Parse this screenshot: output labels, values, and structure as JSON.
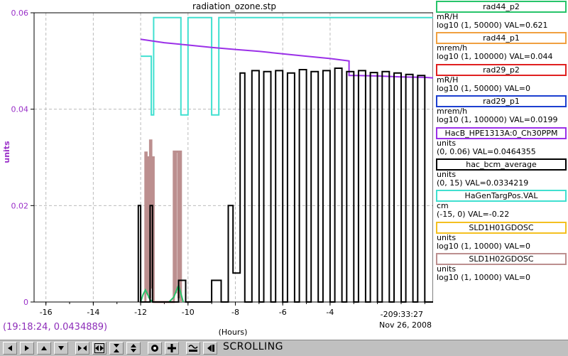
{
  "window": {
    "title": "radiation_ozone.stp",
    "x_label": "(Hours)",
    "time_label": "-209:33:27",
    "date_label": "Nov 26, 2008",
    "coord_readout": "(19:18:24, 0.0434889)",
    "status": "SCROLLING"
  },
  "colors": {
    "axis_y_label": "#9a30c8",
    "coord_text": "#8d2db9",
    "toolbar_bg": "#c0c0c0"
  },
  "legend": [
    {
      "name": "rad44_p2",
      "color": "#27c46a",
      "unit": "mR/H",
      "range": "log10 (1, 50000) VAL=0.621"
    },
    {
      "name": "rad44_p1",
      "color": "#f0a040",
      "unit": "mrem/h",
      "range": "log10 (1, 100000) VAL=0.044"
    },
    {
      "name": "rad29_p2",
      "color": "#e02020",
      "unit": "mR/H",
      "range": "log10 (1, 50000)  VAL=0"
    },
    {
      "name": "rad29_p1",
      "color": "#1c3fd0",
      "unit": "mrem/h",
      "range": "log10 (1, 100000) VAL=0.0199"
    },
    {
      "name": "HacB_HPE1313A:0_Ch30PPM",
      "color": "#9b30e8",
      "unit": "units",
      "range": "(0, 0.06) VAL=0.0464355"
    },
    {
      "name": "hac_bcm_average",
      "color": "#000000",
      "unit": "units",
      "range": "(0, 15) VAL=0.0334219"
    },
    {
      "name": "HaGenTargPos.VAL",
      "color": "#40e0d0",
      "unit": "cm",
      "range": "(-15, 0)  VAL=-0.22"
    },
    {
      "name": "SLD1H01GDOSC",
      "color": "#f4c020",
      "unit": "units",
      "range": "log10 (1, 10000)  VAL=0"
    },
    {
      "name": "SLD1H02GDOSC",
      "color": "#bc8f8f",
      "unit": "units",
      "range": "log10 (1, 10000)  VAL=0"
    }
  ],
  "toolbar": {
    "buttons": [
      "arrow-left-icon",
      "arrow-right-icon",
      "arrow-up-icon",
      "arrow-down-icon",
      "zoom-in-x-icon",
      "zoom-out-x-icon",
      "zoom-in-y-icon",
      "zoom-out-y-icon",
      "record-icon",
      "add-icon",
      "fit-icon",
      "back-icon"
    ]
  },
  "chart_data": {
    "type": "line",
    "title": "radiation_ozone.stp",
    "xlabel": "(Hours)",
    "ylabel": "units",
    "xlim": [
      -16.5,
      0.35
    ],
    "ylim": [
      0,
      0.06
    ],
    "x_ticks": [
      -16,
      -14,
      -12,
      -10,
      -8,
      -6,
      -4
    ],
    "x_tick_labels": [
      "-16",
      "-14",
      "-12",
      "-10",
      "-8",
      "-6",
      "-4"
    ],
    "y_ticks": [
      0,
      0.02,
      0.04,
      0.06
    ],
    "y_tick_labels": [
      "0",
      "0.02",
      "0.04",
      "0.06"
    ],
    "grid": true,
    "series": [
      {
        "name": "HaGenTargPos.VAL",
        "color": "#40e0d0",
        "x": [
          -12,
          -11.55,
          -11.55,
          -11.45,
          -11.45,
          -11.25,
          -11.25,
          -10.3,
          -10.3,
          -10.0,
          -10.0,
          -9.95,
          -9.95,
          -9.0,
          -9.0,
          -8.7,
          -8.7,
          -8.6,
          -8.6,
          0.35
        ],
        "y": [
          0.051,
          0.051,
          0.0388,
          0.0388,
          0.059,
          0.059,
          0.059,
          0.059,
          0.0388,
          0.0388,
          0.059,
          0.059,
          0.059,
          0.059,
          0.0388,
          0.0388,
          0.059,
          0.059,
          0.059,
          0.059
        ]
      },
      {
        "name": "HacB_HPE1313A:0_Ch30PPM",
        "color": "#9b30e8",
        "x": [
          -12.0,
          -11,
          -10,
          -9,
          -8,
          -7,
          -6,
          -5,
          -4,
          -3.2,
          -3.2,
          -3.0,
          -2,
          -1,
          0,
          0.35
        ],
        "y": [
          0.0545,
          0.0538,
          0.0533,
          0.0528,
          0.0524,
          0.052,
          0.0515,
          0.051,
          0.0505,
          0.05,
          0.047,
          0.047,
          0.0469,
          0.0467,
          0.0466,
          0.0465
        ]
      },
      {
        "name": "SLD1H02GDOSC",
        "color": "#bc8f8f",
        "x": [
          -11.8,
          -11.8,
          -11.75,
          -11.75,
          -11.7,
          -11.7,
          -11.65,
          -11.65,
          -11.6,
          -11.6,
          -11.55,
          -11.55,
          -11.5,
          -11.5,
          -11.45,
          -11.45,
          -10.6,
          -10.6,
          -10.55,
          -10.55,
          -10.5,
          -10.5,
          -10.4,
          -10.4,
          -10.35,
          -10.35,
          -10.3,
          -10.3
        ],
        "y": [
          0.0,
          0.031,
          0.031,
          0.002,
          0.002,
          0.03,
          0.03,
          0.001,
          0.001,
          0.0335,
          0.0335,
          0.003,
          0.003,
          0.03,
          0.03,
          0.0,
          0.0,
          0.0312,
          0.0312,
          0.002,
          0.002,
          0.0312,
          0.0312,
          0.001,
          0.001,
          0.0312,
          0.0312,
          0.0
        ]
      },
      {
        "name": "rad44_p2",
        "color": "#27c46a",
        "x": [
          -12.0,
          -11.9,
          -11.8,
          -11.6,
          -11.5,
          -10.8,
          -10.6,
          -10.4,
          -10.2
        ],
        "y": [
          0.0,
          0.0015,
          0.0025,
          0.0005,
          0.0,
          0.0,
          0.001,
          0.0035,
          0.0
        ]
      },
      {
        "name": "hac_bcm_average",
        "color": "#000000",
        "x": [
          -12.1,
          -12.1,
          -12.0,
          -12.0,
          -11.6,
          -11.6,
          -11.5,
          -11.5,
          -10.4,
          -10.4,
          -10.1,
          -10.1,
          -9.0,
          -9.0,
          -8.6,
          -8.6,
          -8.3,
          -8.3,
          -8.1,
          -8.1,
          -7.8,
          -7.8,
          -7.6,
          -7.6,
          -7.3,
          -7.3,
          -7.0,
          -7.0,
          -6.8,
          -6.8,
          -6.5,
          -6.5,
          -6.3,
          -6.3,
          -6.0,
          -6.0,
          -5.8,
          -5.8,
          -5.5,
          -5.5,
          -5.3,
          -5.3,
          -5.0,
          -5.0,
          -4.8,
          -4.8,
          -4.5,
          -4.5,
          -4.3,
          -4.3,
          -4.0,
          -4.0,
          -3.8,
          -3.8,
          -3.5,
          -3.5,
          -3.3,
          -3.3,
          -3.0,
          -3.0,
          -2.8,
          -2.8,
          -2.5,
          -2.5,
          -2.3,
          -2.3,
          -2.0,
          -2.0,
          -1.8,
          -1.8,
          -1.5,
          -1.5,
          -1.3,
          -1.3,
          -1.0,
          -1.0,
          -0.8,
          -0.8,
          -0.5,
          -0.5,
          -0.3,
          -0.3,
          0.0,
          0.0,
          0.35
        ],
        "y": [
          0.0,
          0.02,
          0.02,
          0.0,
          0.0,
          0.02,
          0.02,
          0.0,
          0.0,
          0.0045,
          0.0045,
          0.0,
          0.0,
          0.0045,
          0.0045,
          0.0,
          0.0,
          0.02,
          0.02,
          0.006,
          0.006,
          0.0475,
          0.0475,
          0.0,
          0.0,
          0.048,
          0.048,
          0.0,
          0.0,
          0.0478,
          0.0478,
          0.0,
          0.0,
          0.048,
          0.048,
          0.0,
          0.0,
          0.0475,
          0.0475,
          0.0,
          0.0,
          0.0482,
          0.0482,
          0.0,
          0.0,
          0.0478,
          0.0478,
          0.0,
          0.0,
          0.048,
          0.048,
          0.0,
          0.0,
          0.0485,
          0.0485,
          0.0,
          0.0,
          0.0478,
          0.0478,
          0.0,
          0.0,
          0.048,
          0.048,
          0.0,
          0.0,
          0.0476,
          0.0476,
          0.0,
          0.0,
          0.0478,
          0.0478,
          0.0,
          0.0,
          0.0475,
          0.0475,
          0.0,
          0.0,
          0.0472,
          0.0472,
          0.0,
          0.0,
          0.047,
          0.047,
          0.0,
          0.0
        ]
      }
    ]
  }
}
